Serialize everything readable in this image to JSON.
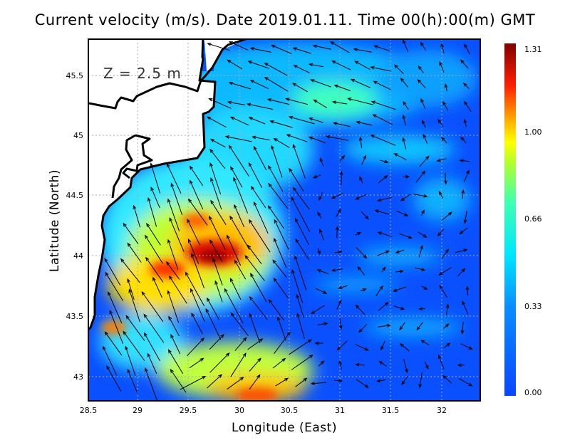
{
  "title": "Current velocity (m/s). Date 2019.01.11. Time 00(h):00(m) GMT",
  "depth_label": "Z  =  2.5  m",
  "x_axis": {
    "label": "Longitude (East)",
    "ticks": [
      "28.5",
      "29",
      "29.5",
      "30",
      "30.5",
      "31",
      "31.5",
      "32"
    ],
    "range": [
      28.5,
      32.4
    ]
  },
  "y_axis": {
    "label": "Latitude (North)",
    "ticks": [
      "45.5",
      "45",
      "44.5",
      "44",
      "43.5",
      "43"
    ],
    "range": [
      42.8,
      45.8
    ]
  },
  "colorbar": {
    "ticks": [
      "1.31",
      "1.00",
      "0.66",
      "0.33",
      "0.00"
    ],
    "min": 0.0,
    "max": 1.31,
    "units": "m/s"
  },
  "colors": {
    "ocean_low": "#0a46ff",
    "ocean_mid": "#00e6ff",
    "high": "#ffff00",
    "max": "#800000",
    "land": "#ffffff"
  }
}
